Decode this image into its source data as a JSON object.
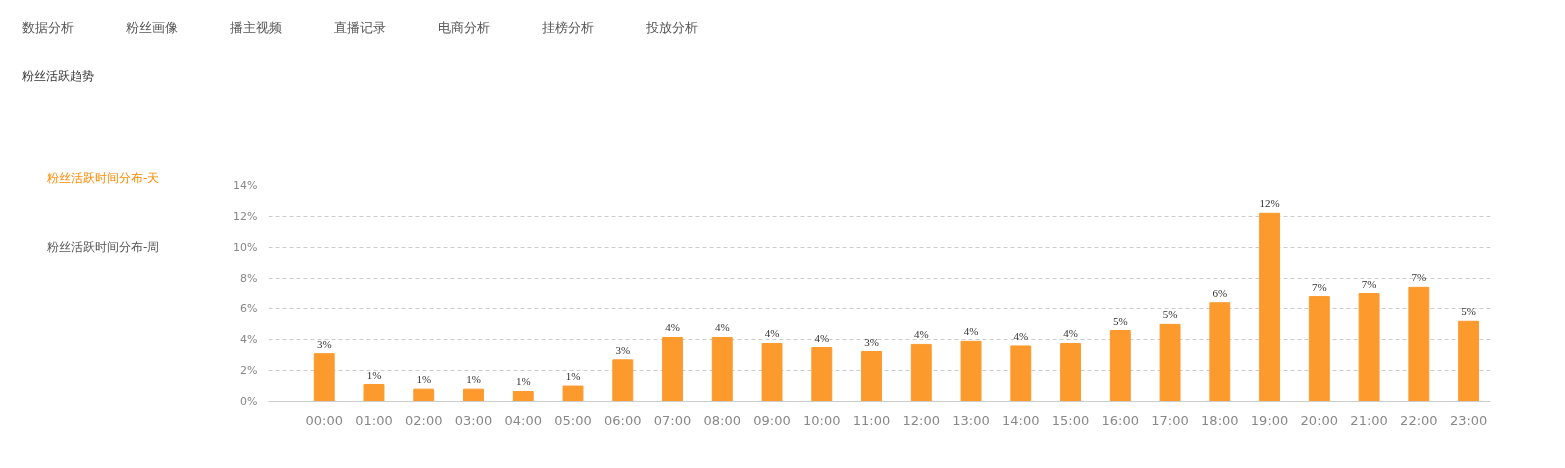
{
  "chart_data": {
    "type": "bar",
    "title": "粉丝活跃趋势",
    "subtitle": "粉丝活跃时间分布-天",
    "annotations": [
      "数据分析",
      "粉丝画像",
      "播主视频",
      "直播记录",
      "电商分析",
      "挂榜分析",
      "投放分析",
      "粉丝活跃时间分布-周"
    ],
    "categories": [
      "00:00",
      "01:00",
      "02:00",
      "03:00",
      "04:00",
      "05:00",
      "06:00",
      "07:00",
      "08:00",
      "09:00",
      "10:00",
      "11:00",
      "12:00",
      "13:00",
      "14:00",
      "15:00",
      "16:00",
      "17:00",
      "18:00",
      "19:00",
      "20:00",
      "21:00",
      "22:00",
      "23:00"
    ],
    "values": [
      3.1,
      1.1,
      0.8,
      0.8,
      0.65,
      1.0,
      2.7,
      4.15,
      4.15,
      3.76,
      3.5,
      3.24,
      3.7,
      3.9,
      3.6,
      3.76,
      4.6,
      5.0,
      6.4,
      12.2,
      6.8,
      7.0,
      7.4,
      5.2
    ],
    "value_labels": [
      "3%",
      "1%",
      "1%",
      "1%",
      "1%",
      "1%",
      "3%",
      "4%",
      "4%",
      "4%",
      "4%",
      "3%",
      "4%",
      "4%",
      "4%",
      "4%",
      "5%",
      "5%",
      "6%",
      "12%",
      "7%",
      "7%",
      "7%",
      "5%"
    ],
    "color": "#fc9a2e",
    "ylim": [
      0,
      14
    ],
    "yticks": [
      {
        "value": 0,
        "label": "0%"
      },
      {
        "value": 2,
        "label": "2%"
      },
      {
        "value": 4,
        "label": "4%"
      },
      {
        "value": 6,
        "label": "6%"
      },
      {
        "value": 8,
        "label": "8%"
      },
      {
        "value": 10,
        "label": "10%"
      },
      {
        "value": 12,
        "label": "12%"
      },
      {
        "value": 14,
        "label": "14%"
      }
    ],
    "grid": "y"
  }
}
